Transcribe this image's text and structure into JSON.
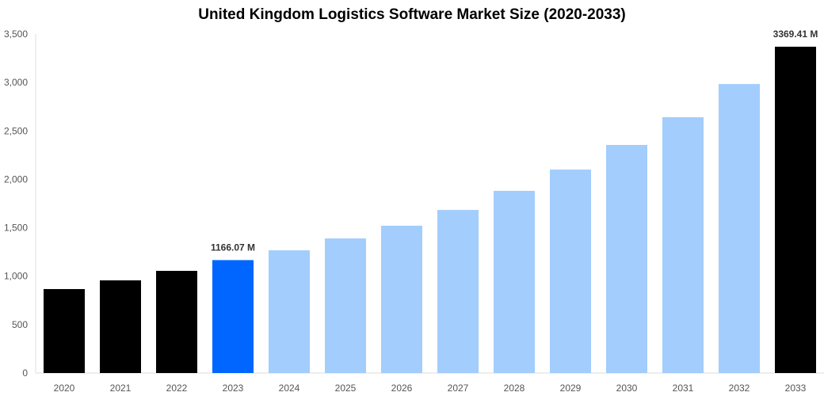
{
  "chart_data": {
    "type": "bar",
    "title": "United Kingdom Logistics Software Market Size (2020-2033)",
    "xlabel": "",
    "ylabel": "",
    "ylim": [
      0,
      3500
    ],
    "yticks": [
      "0",
      "500",
      "1,000",
      "1,500",
      "2,000",
      "2,500",
      "3,000",
      "3,500"
    ],
    "ytick_values": [
      0,
      500,
      1000,
      1500,
      2000,
      2500,
      3000,
      3500
    ],
    "grid": false,
    "categories": [
      "2020",
      "2021",
      "2022",
      "2023",
      "2024",
      "2025",
      "2026",
      "2027",
      "2028",
      "2029",
      "2030",
      "2031",
      "2032",
      "2033"
    ],
    "values": [
      867,
      957,
      1055,
      1166.07,
      1267,
      1390,
      1521,
      1684,
      1881,
      2101,
      2355,
      2641,
      2984,
      3369.41
    ],
    "bar_colors": [
      "#000000",
      "#000000",
      "#000000",
      "#0066ff",
      "#a2cdfd",
      "#a2cdfd",
      "#a2cdfd",
      "#a2cdfd",
      "#a2cdfd",
      "#a2cdfd",
      "#a2cdfd",
      "#a2cdfd",
      "#a2cdfd",
      "#000000"
    ],
    "data_labels": [
      {
        "category": "2023",
        "text": "1166.07 M"
      },
      {
        "category": "2033",
        "text": "3369.41 M"
      }
    ]
  }
}
